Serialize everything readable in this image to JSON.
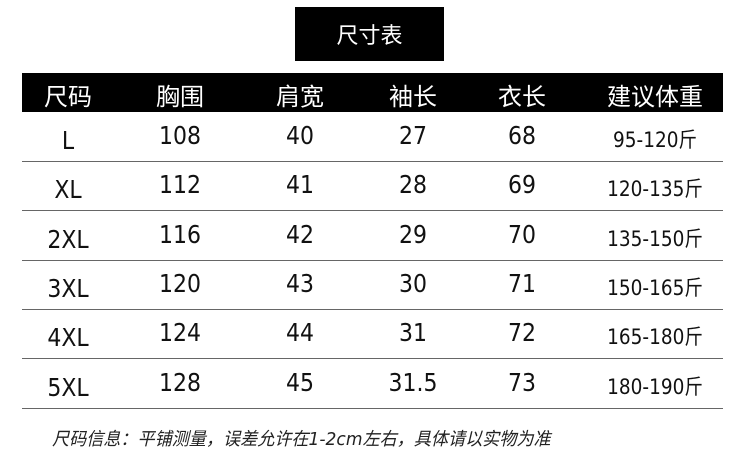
{
  "title": "尺寸表",
  "headers": [
    "尺码",
    "胸围",
    "肩宽",
    "袖长",
    "衣长",
    "建议体重"
  ],
  "rows": [
    [
      "L",
      "108",
      "40",
      "27",
      "68",
      "95-120斤"
    ],
    [
      "XL",
      "112",
      "41",
      "28",
      "69",
      "120-135斤"
    ],
    [
      "2XL",
      "116",
      "42",
      "29",
      "70",
      "135-150斤"
    ],
    [
      "3XL",
      "120",
      "43",
      "30",
      "71",
      "150-165斤"
    ],
    [
      "4XL",
      "124",
      "44",
      "31",
      "72",
      "165-180斤"
    ],
    [
      "5XL",
      "128",
      "45",
      "31.5",
      "73",
      "180-190斤"
    ]
  ],
  "note": "尺码信息：平铺测量，误差允许在1-2cm左右，具体请以实物为准"
}
